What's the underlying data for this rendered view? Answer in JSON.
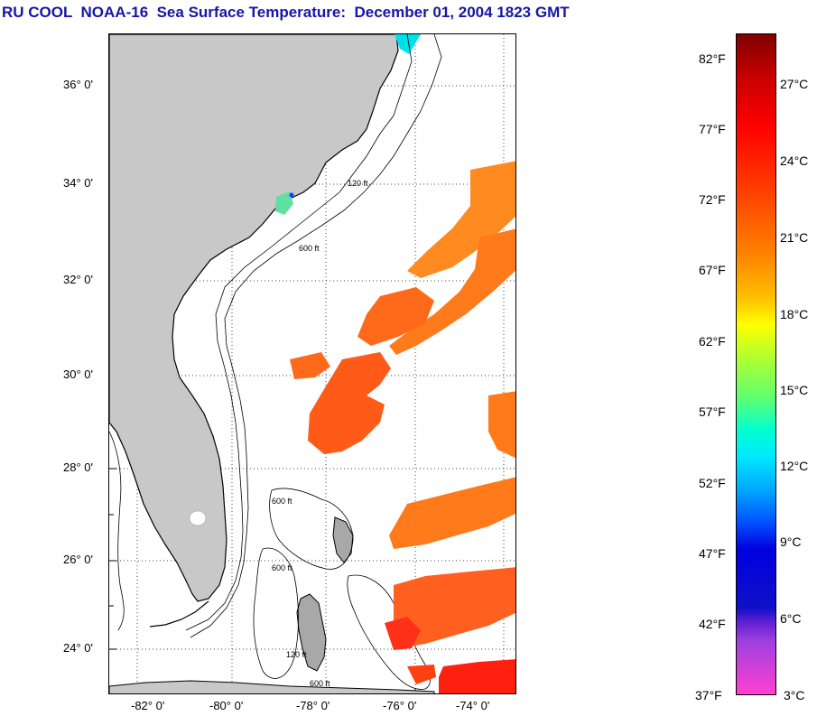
{
  "title": "RU COOL  NOAA-16  Sea Surface Temperature:  December 01, 2004 1823 GMT",
  "lat_labels": [
    "36° 0'",
    "34° 0'",
    "32° 0'",
    "30° 0'",
    "28° 0'",
    "26° 0'",
    "24° 0'"
  ],
  "lon_labels": [
    "-82° 0'",
    "-80° 0'",
    "-78° 0'",
    "-76° 0'",
    "-74° 0'"
  ],
  "contour_labels": [
    "120 ft",
    "600 ft"
  ],
  "colorbar": {
    "fahrenheit": [
      "82°F",
      "77°F",
      "72°F",
      "67°F",
      "62°F",
      "57°F",
      "52°F",
      "47°F",
      "42°F",
      "37°F"
    ],
    "celsius": [
      "27°C",
      "24°C",
      "21°C",
      "18°C",
      "15°C",
      "12°C",
      "9°C",
      "6°C",
      "3°C"
    ]
  },
  "colors": {
    "title": "#1616a8",
    "land": "#c8c8c8",
    "sst_warm": "#ff6a1a",
    "sst_hot": "#ff2010"
  }
}
